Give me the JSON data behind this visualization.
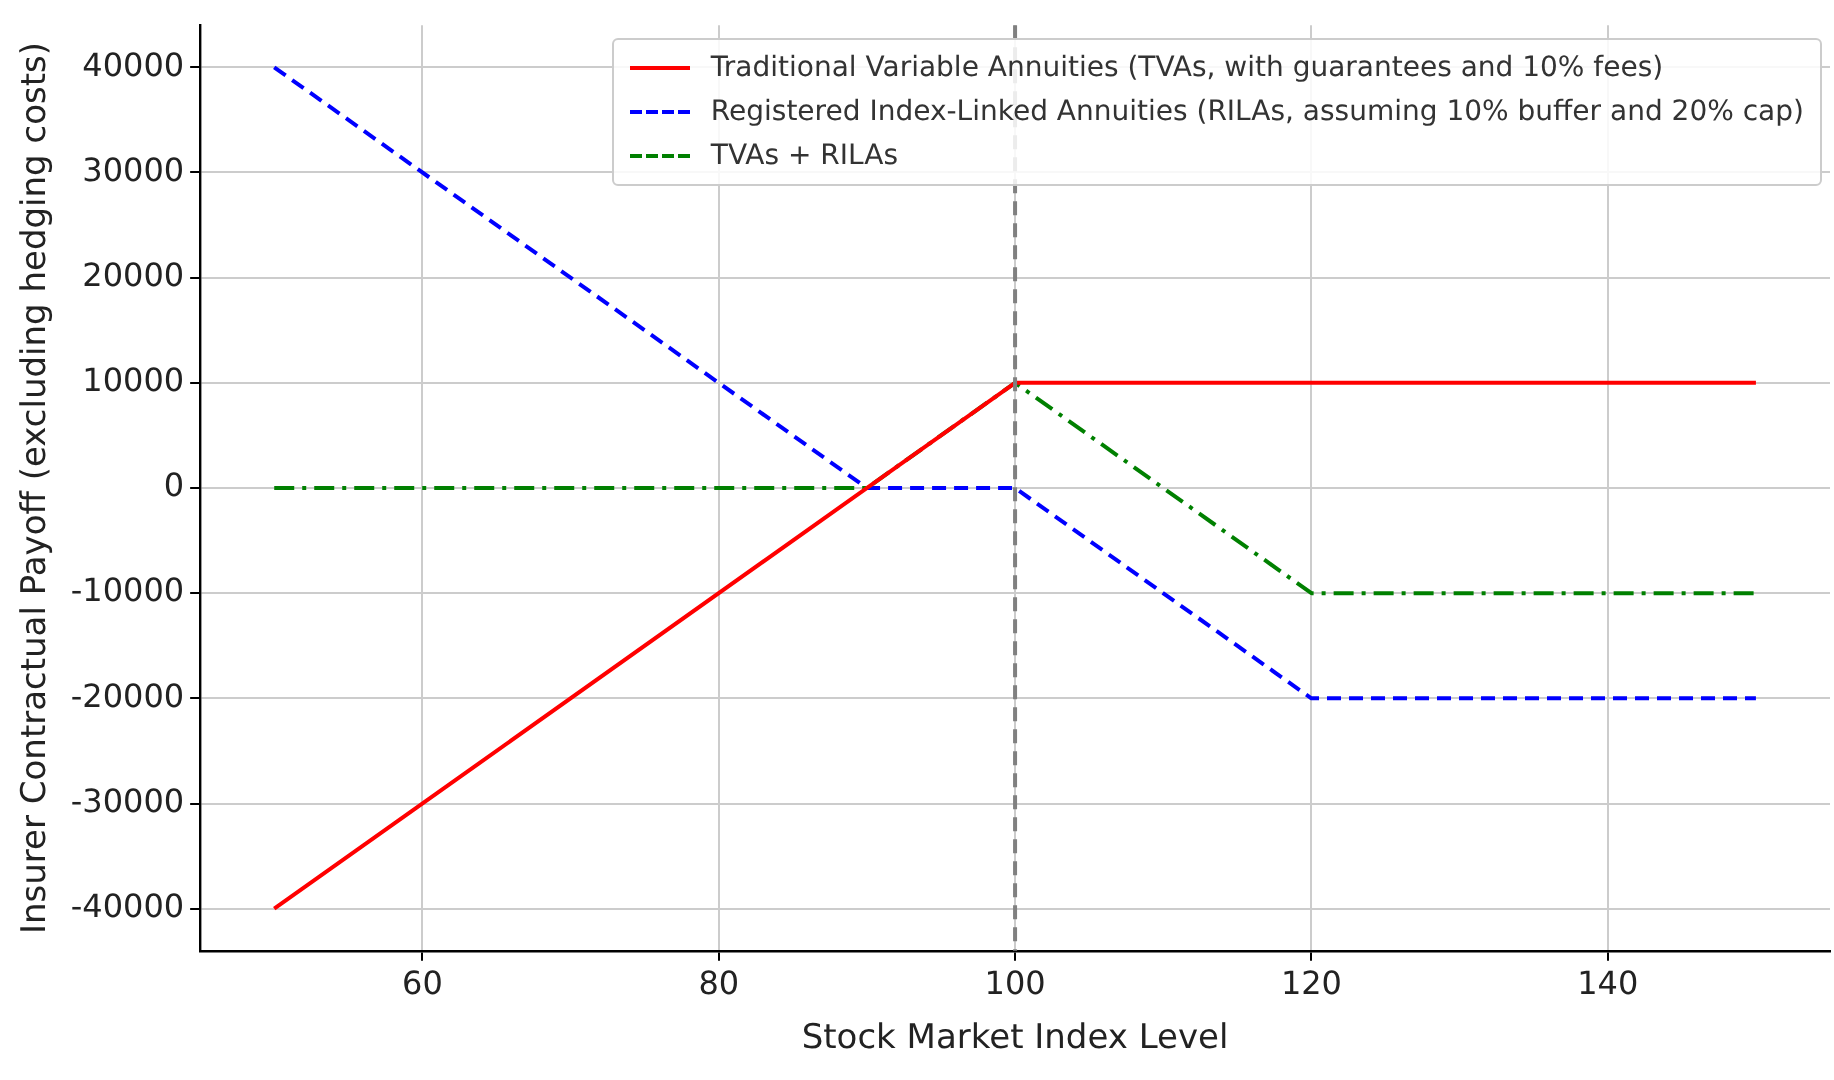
{
  "chart_data": {
    "type": "line",
    "xlabel": "Stock Market Index Level",
    "ylabel": "Insurer Contractual Payoff (excluding hedging costs)",
    "xlim": [
      45,
      155
    ],
    "xticks": [
      60,
      80,
      100,
      120,
      140
    ],
    "ylim": [
      -44000,
      44000
    ],
    "yticks": [
      -40000,
      -30000,
      -20000,
      -10000,
      0,
      10000,
      20000,
      30000,
      40000
    ],
    "grid": true,
    "legend": "top right",
    "marker": "none",
    "series": [
      {
        "name": "Traditional Variable Annuities (TVAs, with guarantees and 10% fees)",
        "color": "#ff0000",
        "line_style": "solid",
        "x": [
          50,
          100,
          150
        ],
        "values": [
          -40000,
          10000,
          10000
        ]
      },
      {
        "name": "Registered Index-Linked Annuities (RILAs, assuming 10% buffer and 20% cap)",
        "color": "#0000ff",
        "line_style": "dashed",
        "x": [
          50,
          90,
          100,
          120,
          150
        ],
        "values": [
          40000,
          0,
          0,
          -20000,
          -20000
        ]
      },
      {
        "name": "TVAs + RILAs",
        "color": "#008000",
        "line_style": "dashdot",
        "x": [
          50,
          90,
          100,
          120,
          150
        ],
        "values": [
          0,
          0,
          10000,
          -10000,
          -10000
        ]
      }
    ],
    "ref_lines": [
      {
        "axis": "x",
        "value": 100,
        "color": "#808080",
        "line_style": "dashed"
      }
    ]
  }
}
